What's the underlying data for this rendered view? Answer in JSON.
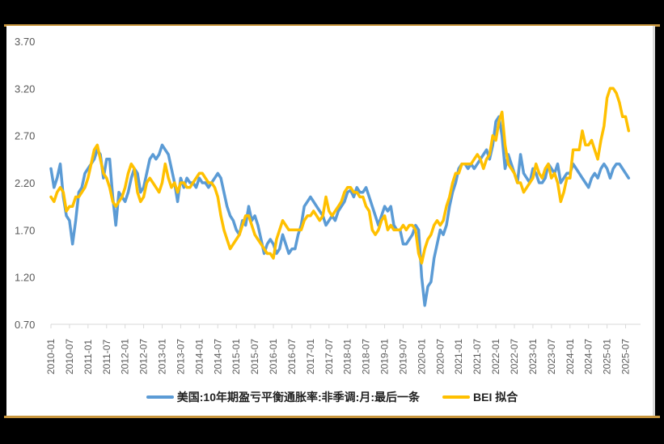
{
  "chart_data": {
    "type": "line",
    "title": "",
    "xlabel": "",
    "ylabel": "",
    "ylim": [
      0.7,
      3.7
    ],
    "yticks": [
      "3.70",
      "3.20",
      "2.70",
      "2.20",
      "1.70",
      "1.20",
      "0.70"
    ],
    "grid": false,
    "legend_position": "bottom",
    "x_tick_labels": [
      "2010-01",
      "2010-07",
      "2011-01",
      "2011-07",
      "2012-01",
      "2012-07",
      "2013-01",
      "2013-07",
      "2014-01",
      "2014-07",
      "2015-01",
      "2015-07",
      "2016-01",
      "2016-07",
      "2017-01",
      "2017-07",
      "2018-01",
      "2018-07",
      "2019-01",
      "2019-07",
      "2020-01",
      "2020-07",
      "2021-01",
      "2021-07",
      "2022-01",
      "2022-07",
      "2023-01",
      "2023-07",
      "2024-01",
      "2024-07",
      "2025-01",
      "2025-07"
    ],
    "x_start": "2010-01",
    "x_frequency": "monthly",
    "series": [
      {
        "name": "美国:10年期盈亏平衡通胀率:非季调:月:最后一条",
        "color": "#5b9bd5",
        "values": [
          2.35,
          2.15,
          2.25,
          2.4,
          2.05,
          1.85,
          1.8,
          1.55,
          1.8,
          2.1,
          2.15,
          2.3,
          2.35,
          2.4,
          2.45,
          2.55,
          2.5,
          2.25,
          2.45,
          2.45,
          2.05,
          1.75,
          2.1,
          2.05,
          2.0,
          2.1,
          2.25,
          2.35,
          2.3,
          2.1,
          2.15,
          2.3,
          2.45,
          2.5,
          2.45,
          2.5,
          2.6,
          2.55,
          2.5,
          2.35,
          2.2,
          2.0,
          2.25,
          2.15,
          2.25,
          2.2,
          2.2,
          2.15,
          2.25,
          2.2,
          2.2,
          2.15,
          2.2,
          2.25,
          2.3,
          2.25,
          2.1,
          1.95,
          1.85,
          1.8,
          1.7,
          1.65,
          1.8,
          1.75,
          1.95,
          1.8,
          1.85,
          1.75,
          1.6,
          1.45,
          1.55,
          1.6,
          1.55,
          1.45,
          1.5,
          1.65,
          1.55,
          1.45,
          1.5,
          1.5,
          1.65,
          1.75,
          1.95,
          2.0,
          2.05,
          2.0,
          1.95,
          1.9,
          1.85,
          1.75,
          1.8,
          1.85,
          1.8,
          1.9,
          1.95,
          2.0,
          2.1,
          2.12,
          2.05,
          2.15,
          2.1,
          2.1,
          2.15,
          2.05,
          1.95,
          1.85,
          1.75,
          1.85,
          1.95,
          1.9,
          1.95,
          1.75,
          1.7,
          1.7,
          1.55,
          1.55,
          1.6,
          1.65,
          1.75,
          1.7,
          1.2,
          0.9,
          1.1,
          1.15,
          1.4,
          1.55,
          1.7,
          1.65,
          1.75,
          1.95,
          2.1,
          2.2,
          2.35,
          2.4,
          2.4,
          2.35,
          2.4,
          2.35,
          2.4,
          2.45,
          2.5,
          2.55,
          2.45,
          2.6,
          2.85,
          2.9,
          2.7,
          2.35,
          2.5,
          2.4,
          2.3,
          2.2,
          2.5,
          2.3,
          2.25,
          2.2,
          2.35,
          2.3,
          2.2,
          2.2,
          2.25,
          2.4,
          2.35,
          2.3,
          2.4,
          2.2,
          2.25,
          2.3,
          2.3,
          2.4,
          2.35,
          2.3,
          2.25,
          2.2,
          2.15,
          2.25,
          2.3,
          2.25,
          2.35,
          2.4,
          2.35,
          2.25,
          2.35,
          2.4,
          2.4,
          2.35,
          2.3,
          2.25
        ]
      },
      {
        "name": "BEI 拟合",
        "color": "#ffc000",
        "values": [
          2.05,
          2.0,
          2.1,
          2.15,
          2.1,
          1.9,
          1.95,
          1.95,
          2.05,
          2.05,
          2.1,
          2.15,
          2.25,
          2.4,
          2.55,
          2.6,
          2.45,
          2.3,
          2.25,
          2.15,
          2.0,
          1.95,
          2.0,
          2.05,
          2.15,
          2.3,
          2.4,
          2.35,
          2.1,
          2.0,
          2.05,
          2.2,
          2.25,
          2.2,
          2.15,
          2.1,
          2.2,
          2.4,
          2.25,
          2.15,
          2.2,
          2.1,
          2.2,
          2.2,
          2.15,
          2.15,
          2.2,
          2.25,
          2.3,
          2.3,
          2.25,
          2.2,
          2.2,
          2.15,
          2.05,
          1.85,
          1.7,
          1.6,
          1.5,
          1.55,
          1.6,
          1.65,
          1.75,
          1.85,
          1.85,
          1.75,
          1.65,
          1.6,
          1.55,
          1.5,
          1.45,
          1.45,
          1.4,
          1.6,
          1.7,
          1.8,
          1.75,
          1.7,
          1.7,
          1.7,
          1.7,
          1.7,
          1.8,
          1.85,
          1.85,
          1.9,
          1.85,
          1.8,
          1.85,
          2.05,
          1.9,
          1.85,
          1.9,
          1.95,
          2.0,
          2.1,
          2.15,
          2.15,
          2.1,
          2.1,
          2.05,
          2.05,
          1.95,
          1.9,
          1.7,
          1.65,
          1.7,
          1.8,
          1.85,
          1.7,
          1.75,
          1.7,
          1.7,
          1.7,
          1.75,
          1.7,
          1.75,
          1.75,
          1.7,
          1.45,
          1.35,
          1.5,
          1.6,
          1.65,
          1.75,
          1.8,
          1.75,
          1.8,
          1.95,
          2.05,
          2.2,
          2.3,
          2.3,
          2.4,
          2.4,
          2.4,
          2.4,
          2.45,
          2.5,
          2.45,
          2.35,
          2.45,
          2.5,
          2.7,
          2.65,
          2.85,
          2.95,
          2.6,
          2.4,
          2.35,
          2.3,
          2.2,
          2.2,
          2.1,
          2.15,
          2.2,
          2.25,
          2.4,
          2.3,
          2.25,
          2.35,
          2.4,
          2.25,
          2.3,
          2.2,
          2.0,
          2.1,
          2.25,
          2.25,
          2.55,
          2.55,
          2.55,
          2.75,
          2.6,
          2.6,
          2.65,
          2.55,
          2.45,
          2.65,
          2.8,
          3.1,
          3.2,
          3.2,
          3.15,
          3.05,
          2.9,
          2.9,
          2.75
        ]
      }
    ]
  },
  "legend": {
    "items": [
      {
        "label": "美国:10年期盈亏平衡通胀率:非季调:月:最后一条",
        "color": "#5b9bd5"
      },
      {
        "label": "BEI 拟合",
        "color": "#ffc000"
      }
    ]
  }
}
